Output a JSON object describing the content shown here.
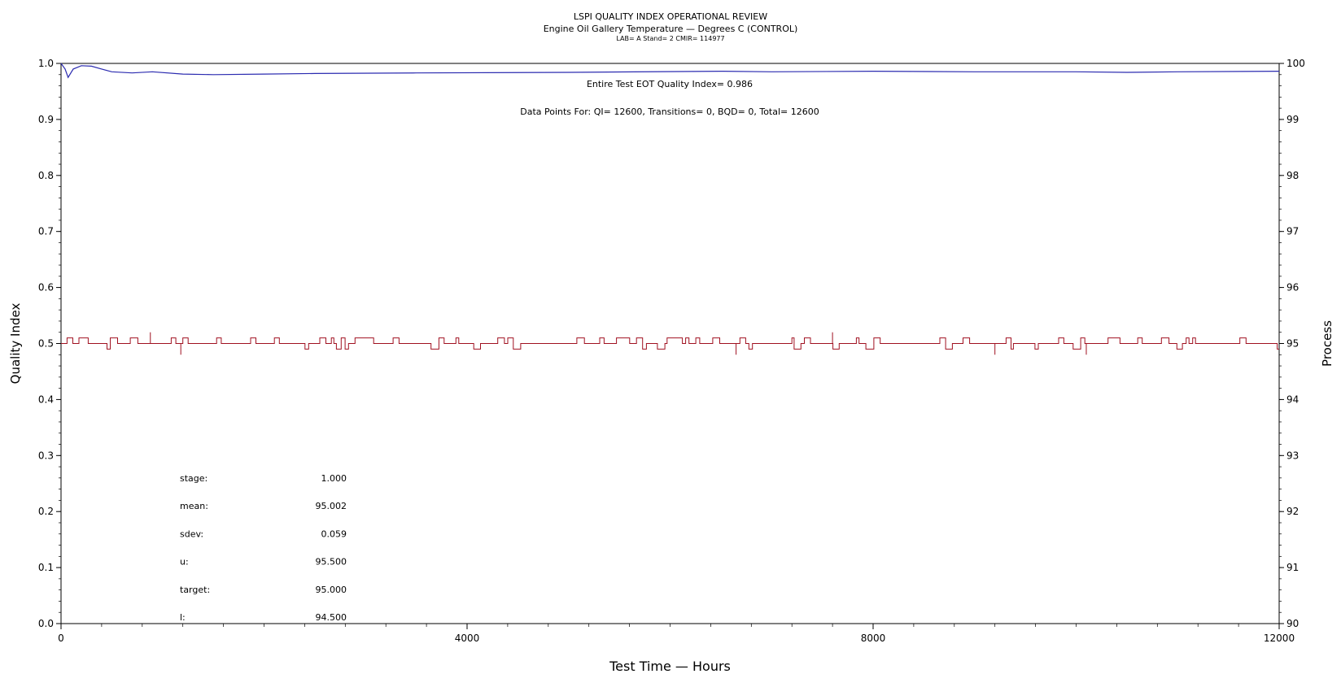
{
  "chart_data": {
    "type": "line",
    "title": "LSPI QUALITY INDEX OPERATIONAL REVIEW",
    "subtitle": "Engine Oil Gallery Temperature — Degrees C (CONTROL)",
    "meta": "LAB= A Stand= 2 CMIR= 114977",
    "xlabel": "Test Time — Hours",
    "ylabel_left": "Quality Index",
    "ylabel_right": "Process",
    "xlim": [
      0,
      12000
    ],
    "ylim_left": [
      0.0,
      1.0
    ],
    "ylim_right": [
      90,
      100
    ],
    "x_ticks": [
      0,
      4000,
      8000,
      12000
    ],
    "y_ticks_left": [
      "0.0",
      "0.1",
      "0.2",
      "0.3",
      "0.4",
      "0.5",
      "0.6",
      "0.7",
      "0.8",
      "0.9",
      "1.0"
    ],
    "y_ticks_right": [
      "90",
      "91",
      "92",
      "93",
      "94",
      "95",
      "96",
      "97",
      "98",
      "99",
      "100"
    ],
    "grid": false,
    "annotations": {
      "quality_index": "Entire Test EOT Quality Index=   0.986",
      "data_points": "Data Points For: QI= 12600, Transitions=     0, BQD=     0, Total= 12600"
    },
    "stats": [
      {
        "label": "stage:",
        "value": "1.000"
      },
      {
        "label": "mean:",
        "value": "95.002"
      },
      {
        "label": "sdev:",
        "value": "0.059"
      },
      {
        "label": "u:",
        "value": "95.500"
      },
      {
        "label": "target:",
        "value": "95.000"
      },
      {
        "label": "l:",
        "value": "94.500"
      }
    ],
    "series": [
      {
        "color": "#2b2bb0",
        "axis": "left",
        "points": [
          [
            0,
            1.0
          ],
          [
            40,
            0.99
          ],
          [
            70,
            0.975
          ],
          [
            120,
            0.99
          ],
          [
            200,
            0.996
          ],
          [
            300,
            0.995
          ],
          [
            400,
            0.99
          ],
          [
            500,
            0.985
          ],
          [
            700,
            0.983
          ],
          [
            900,
            0.985
          ],
          [
            1200,
            0.981
          ],
          [
            1500,
            0.98
          ],
          [
            2000,
            0.981
          ],
          [
            2500,
            0.982
          ],
          [
            3500,
            0.983
          ],
          [
            5000,
            0.984
          ],
          [
            6500,
            0.986
          ],
          [
            7000,
            0.985
          ],
          [
            8000,
            0.986
          ],
          [
            9000,
            0.985
          ],
          [
            10000,
            0.985
          ],
          [
            10500,
            0.984
          ],
          [
            11000,
            0.985
          ],
          [
            12000,
            0.986
          ]
        ]
      },
      {
        "color": "#a01020",
        "axis": "right",
        "target": 95.0,
        "baseline": [
          95.0,
          95.0
        ],
        "deviation_values": [
          95.1,
          94.9,
          95.2,
          94.8
        ]
      }
    ]
  }
}
